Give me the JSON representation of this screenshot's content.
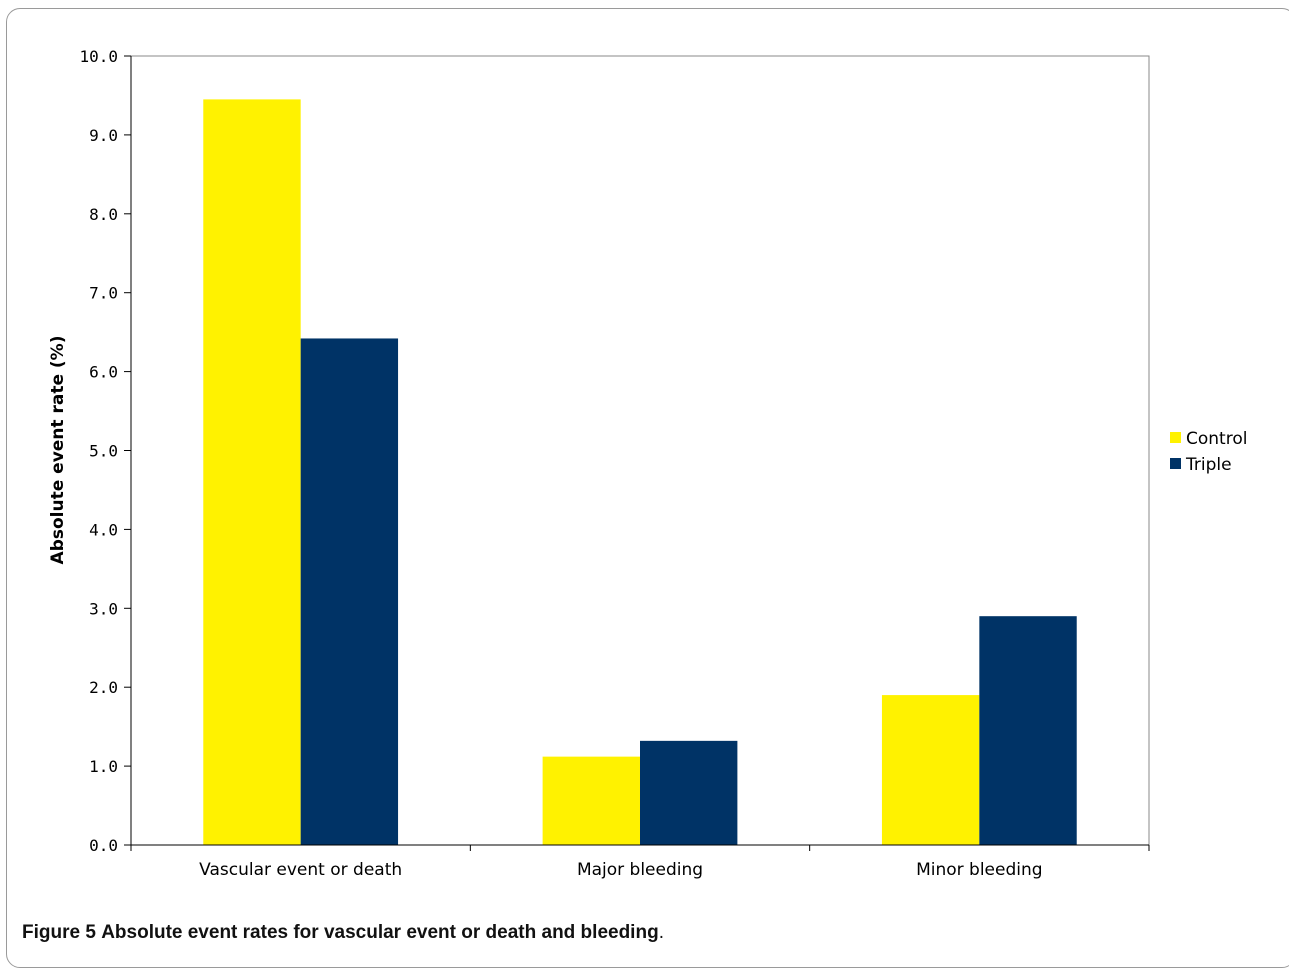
{
  "chart_data": {
    "type": "bar",
    "categories": [
      "Vascular event or death",
      "Major bleeding",
      "Minor bleeding"
    ],
    "series": [
      {
        "name": "Control",
        "values": [
          9.45,
          1.12,
          1.9
        ],
        "color": "#fff200"
      },
      {
        "name": "Triple",
        "values": [
          6.42,
          1.32,
          2.9
        ],
        "color": "#003366"
      }
    ],
    "ylabel": "Absolute event rate (%)",
    "ylim": [
      0,
      10
    ],
    "yticks": [
      "0.0",
      "1.0",
      "2.0",
      "3.0",
      "4.0",
      "5.0",
      "6.0",
      "7.0",
      "8.0",
      "9.0",
      "10.0"
    ],
    "grid": false,
    "legend_position": "right"
  },
  "caption": {
    "label": "Figure 5",
    "title": "Absolute event rates for vascular event or death and bleeding",
    "end": "."
  }
}
